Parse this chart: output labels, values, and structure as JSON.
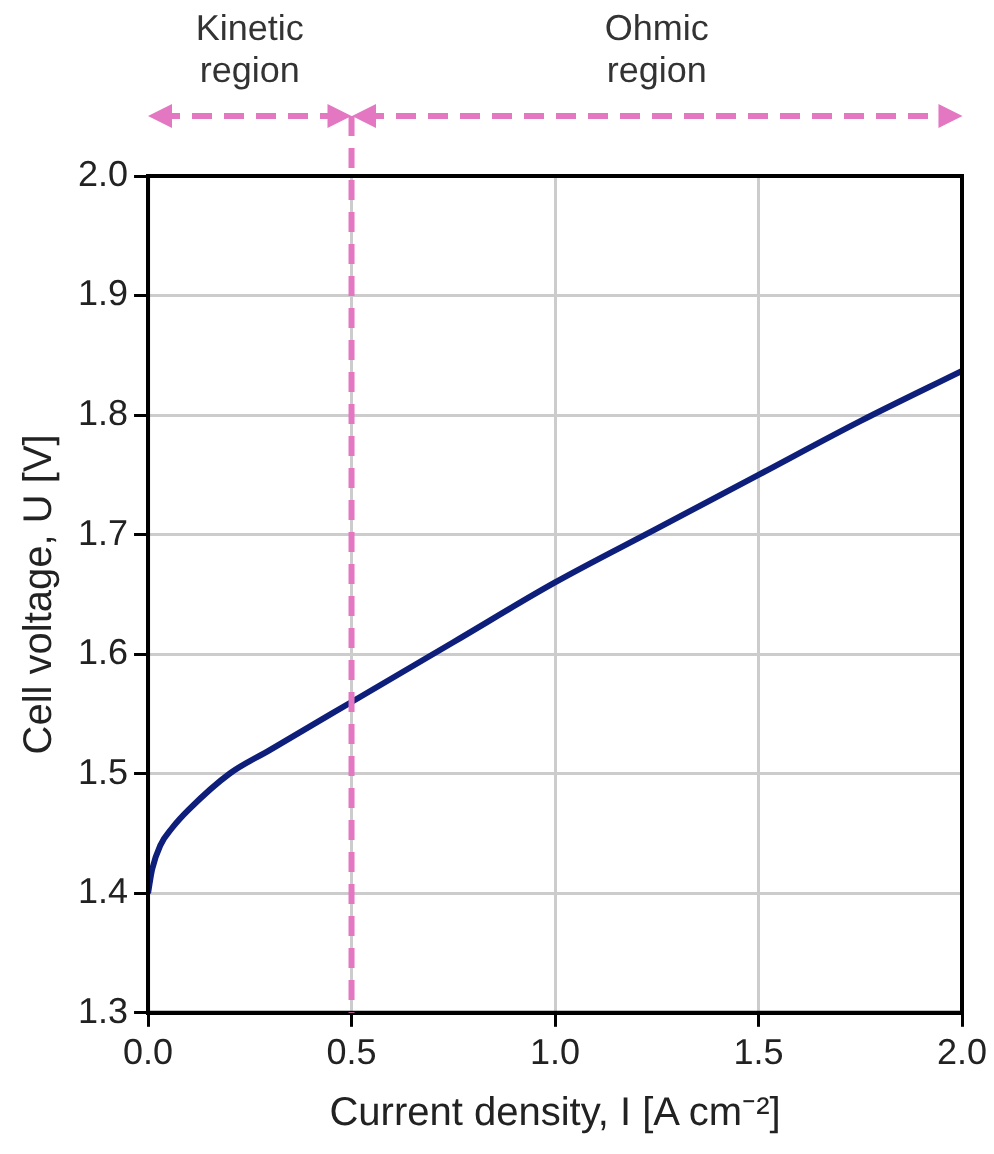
{
  "chart_data": {
    "type": "line",
    "xlabel": "Current density, I [A cm⁻²]",
    "ylabel": "Cell voltage, U [V]",
    "x": [
      0,
      0.01,
      0.03,
      0.06,
      0.1,
      0.2,
      0.3,
      0.4,
      0.5,
      0.75,
      1.0,
      1.25,
      1.5,
      1.75,
      2.0
    ],
    "series": [
      {
        "color": "#0d1f7a",
        "values": [
          1.4,
          1.42,
          1.44,
          1.455,
          1.47,
          1.5,
          1.52,
          1.54,
          1.56,
          1.61,
          1.66,
          1.705,
          1.75,
          1.795,
          1.837
        ]
      }
    ],
    "xlim": [
      0,
      2
    ],
    "xticks": [
      {
        "value": 0,
        "label": "0.0"
      },
      {
        "value": 0.5,
        "label": "0.5"
      },
      {
        "value": 1,
        "label": "1.0"
      },
      {
        "value": 1.5,
        "label": "1.5"
      },
      {
        "value": 2,
        "label": "2.0"
      }
    ],
    "ylim": [
      1.3,
      2
    ],
    "yticks": [
      1.3,
      1.4,
      1.5,
      1.6,
      1.7,
      1.8,
      1.9,
      {
        "value": 2,
        "label": "2.0"
      }
    ],
    "grid": true,
    "marker": "none",
    "line_style": "solid",
    "ref_lines": [
      {
        "axis": "x",
        "value": 0.5,
        "color": "#e377c2",
        "line_style": "dashed"
      }
    ],
    "annotations": [
      "Kinetic region",
      "Ohmic region"
    ]
  }
}
